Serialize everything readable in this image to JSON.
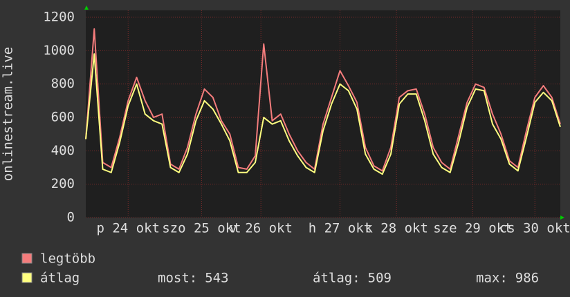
{
  "chart_data": {
    "type": "line",
    "ylabel": "onlinestream.live",
    "x": [
      0,
      3,
      6,
      9,
      12,
      15,
      18,
      21,
      24,
      27,
      30,
      33,
      36,
      39,
      42,
      45,
      48,
      51,
      54,
      57,
      60,
      63,
      66,
      69,
      72,
      75,
      78,
      81,
      84,
      87,
      90,
      93,
      96,
      99,
      102,
      105,
      108,
      111,
      114,
      117,
      120,
      123,
      126,
      129,
      132,
      135,
      138,
      141,
      144,
      147,
      150,
      153,
      156,
      159,
      162,
      165,
      168
    ],
    "series": [
      {
        "name": "legtöbb",
        "color": "#f47c7c",
        "values": [
          470,
          1130,
          330,
          300,
          480,
          700,
          840,
          700,
          600,
          620,
          320,
          290,
          420,
          620,
          770,
          720,
          580,
          500,
          300,
          290,
          370,
          1040,
          580,
          620,
          500,
          400,
          330,
          290,
          560,
          720,
          880,
          790,
          690,
          420,
          310,
          280,
          420,
          720,
          760,
          770,
          620,
          420,
          330,
          290,
          490,
          690,
          800,
          780,
          620,
          500,
          340,
          300,
          520,
          720,
          790,
          720,
          560
        ]
      },
      {
        "name": "átlag",
        "color": "#ffff80",
        "values": [
          470,
          980,
          290,
          270,
          450,
          670,
          800,
          620,
          580,
          560,
          300,
          270,
          380,
          580,
          700,
          650,
          560,
          460,
          270,
          270,
          330,
          600,
          560,
          580,
          460,
          370,
          300,
          270,
          520,
          680,
          800,
          760,
          650,
          380,
          290,
          260,
          380,
          680,
          740,
          740,
          580,
          380,
          300,
          270,
          450,
          660,
          770,
          760,
          560,
          470,
          320,
          280,
          480,
          690,
          750,
          700,
          543
        ]
      }
    ],
    "xlim": [
      0,
      168
    ],
    "xticks": [
      {
        "value": 15,
        "label": "p 24 okt"
      },
      {
        "value": 41,
        "label": "szo 25 okt"
      },
      {
        "value": 62,
        "label": "v 26 okt"
      },
      {
        "value": 90,
        "label": "h 27 okt"
      },
      {
        "value": 110,
        "label": "k 28 okt"
      },
      {
        "value": 137,
        "label": "sze 29 okt"
      },
      {
        "value": 159,
        "label": "cs 30 okt"
      }
    ],
    "ylim": [
      0,
      1200
    ],
    "yticks": [
      0,
      200,
      400,
      600,
      800,
      1000,
      1200
    ],
    "grid": true,
    "stats": [
      {
        "label": "most:",
        "value": 543
      },
      {
        "label": "átlag:",
        "value": 509
      },
      {
        "label": "max:",
        "value": 986
      }
    ]
  }
}
